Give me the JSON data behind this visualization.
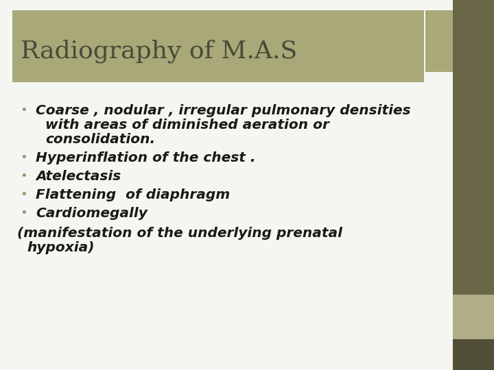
{
  "title": "Radiography of M.A.S",
  "title_bg_color": "#a8a878",
  "title_text_color": "#4a4a3a",
  "slide_bg_color": "#f5f5f2",
  "right_bar_dark": "#6a6648",
  "right_bar_light": "#b0ad88",
  "right_bar_darkest": "#524f38",
  "bullet_dot_color": "#9a9870",
  "bullet_items": [
    "Coarse , nodular , irregular pulmonary densities\nwith areas of diminished aeration or\nconsolidation.",
    "Hyperinflation of the chest .",
    "Atelectasis",
    "Flattening  of diaphragm",
    "Cardiomegally"
  ],
  "footer_line1": "(manifestation of the underlying prenatal",
  "footer_line2": "  hypoxia)",
  "text_color": "#1a1a10",
  "font_size_title": 26,
  "font_size_body": 14.5
}
